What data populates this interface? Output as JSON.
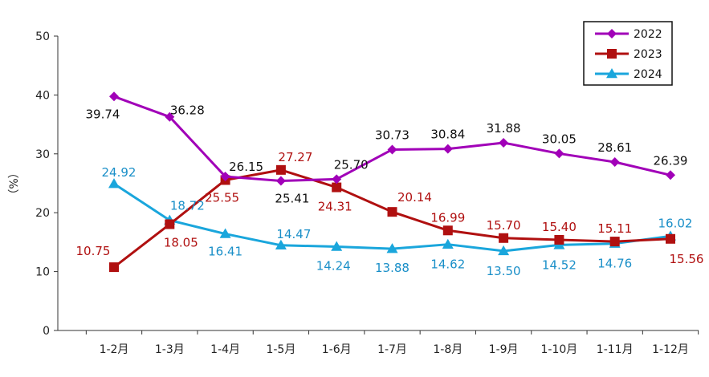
{
  "chart_data": {
    "type": "line",
    "ylabel": "（%）",
    "ylim": [
      0,
      50
    ],
    "yticks": [
      0,
      10,
      20,
      30,
      40,
      50
    ],
    "categories": [
      "1-2月",
      "1-3月",
      "1-4月",
      "1-5月",
      "1-6月",
      "1-7月",
      "1-8月",
      "1-9月",
      "1-10月",
      "1-11月",
      "1-12月"
    ],
    "grid": false,
    "legend_position": "top-right",
    "series": [
      {
        "name": "2022",
        "color": "#A100B8",
        "marker": "diamond",
        "values": [
          39.74,
          36.28,
          26.15,
          25.41,
          25.7,
          30.73,
          30.84,
          31.88,
          30.05,
          28.61,
          26.39
        ],
        "labels": [
          "39.74",
          "36.28",
          "26.15",
          "25.41",
          "25.70",
          "30.73",
          "30.84",
          "31.88",
          "30.05",
          "28.61",
          "26.39"
        ],
        "label_color": "#111111"
      },
      {
        "name": "2023",
        "color": "#B01010",
        "marker": "square",
        "values": [
          10.75,
          18.05,
          25.55,
          27.27,
          24.31,
          20.14,
          16.99,
          15.7,
          15.4,
          15.11,
          15.56
        ],
        "labels": [
          "10.75",
          "18.05",
          "25.55",
          "27.27",
          "24.31",
          "20.14",
          "16.99",
          "15.70",
          "15.40",
          "15.11",
          "15.56"
        ],
        "label_color": "#B01010"
      },
      {
        "name": "2024",
        "color": "#1AA6DC",
        "marker": "triangle",
        "values": [
          24.92,
          18.72,
          16.41,
          14.47,
          14.24,
          13.88,
          14.62,
          13.5,
          14.52,
          14.76,
          16.02
        ],
        "labels": [
          "24.92",
          "18.72",
          "16.41",
          "14.47",
          "14.24",
          "13.88",
          "14.62",
          "13.50",
          "14.52",
          "14.76",
          "16.02"
        ],
        "label_color": "#1A8FC8"
      }
    ]
  }
}
